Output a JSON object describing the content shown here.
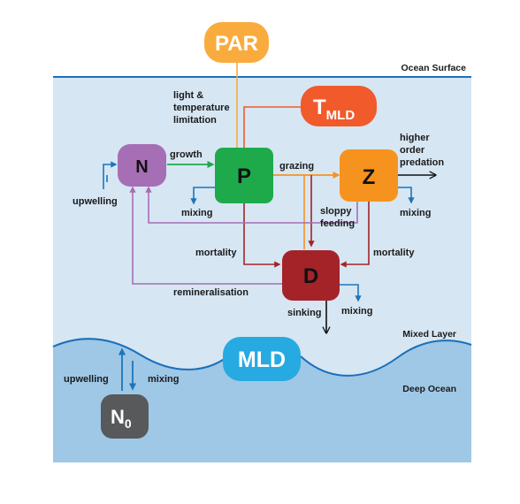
{
  "nodes": {
    "par": "PAR",
    "t": "T",
    "t_sub": "MLD",
    "n": "N",
    "p": "P",
    "z": "Z",
    "d": "D",
    "mld": "MLD",
    "n0": "N",
    "n0_sub": "0"
  },
  "regions": {
    "ocean_surface": "Ocean Surface",
    "mixed_layer": "Mixed Layer",
    "deep_ocean": "Deep Ocean"
  },
  "labels": {
    "light_temp": [
      "light &",
      "temperature",
      "limitation"
    ],
    "growth": "growth",
    "grazing": "grazing",
    "higher_order": [
      "higher",
      "order",
      "predation"
    ],
    "upwelling": "upwelling",
    "mixing": "mixing",
    "sloppy_feeding": [
      "sloppy",
      "feeding"
    ],
    "mortality": "mortality",
    "remineralisation": "remineralisation",
    "sinking": "sinking"
  },
  "colors": {
    "mixed_layer_bg": "#d6e6f3",
    "deep_ocean_bg": "#9fc7e6",
    "surface_line": "#1a6fba",
    "par": "#f9ac3d",
    "t_mld": "#f15a2b",
    "n": "#a66eb5",
    "p": "#1eaa4b",
    "z": "#f6931e",
    "d": "#a32329",
    "mld": "#27aae1",
    "n0": "#58595b",
    "arrow_blue": "#1c75bc",
    "arrow_purple": "#a66eb5",
    "arrow_green": "#1eaa4b",
    "arrow_orange": "#f6931e",
    "arrow_red": "#a32329",
    "arrow_black": "#111111"
  }
}
